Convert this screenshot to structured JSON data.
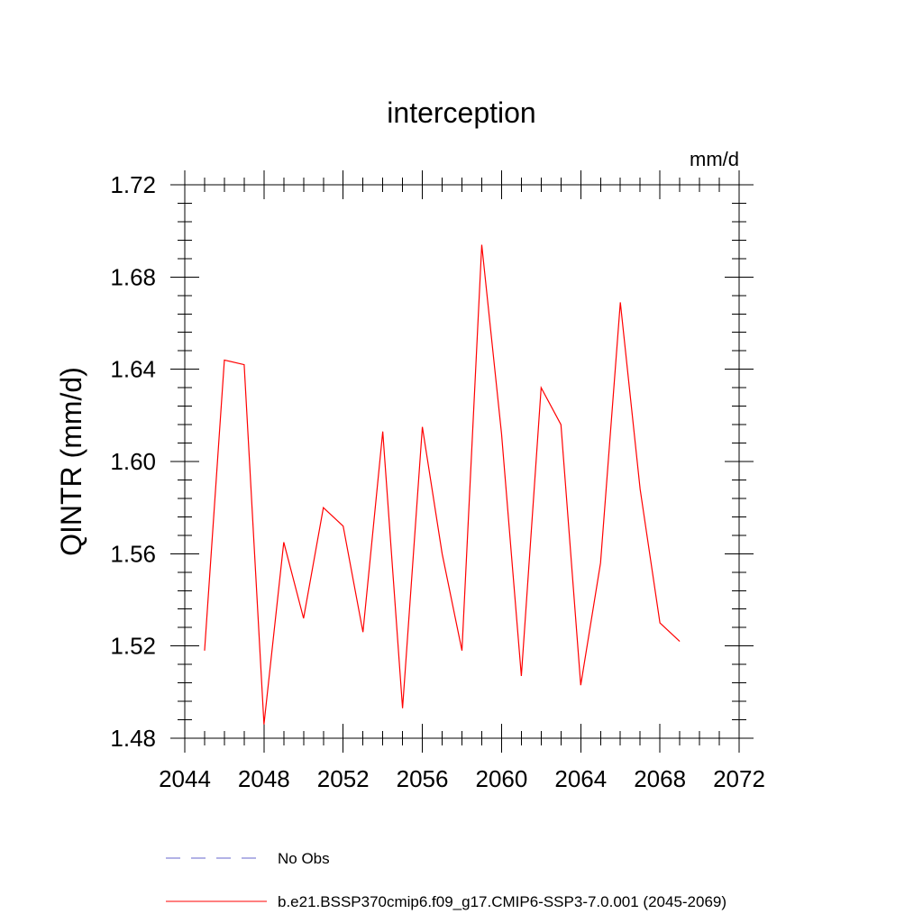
{
  "chart_data": {
    "type": "line",
    "title": "interception",
    "units_label": "mm/d",
    "ylabel": "QINTR  (mm/d)",
    "xlabel": "",
    "xlim": [
      2044,
      2072
    ],
    "ylim": [
      1.48,
      1.72
    ],
    "x_ticks": [
      "2044",
      "2048",
      "2052",
      "2056",
      "2060",
      "2064",
      "2068",
      "2072"
    ],
    "y_ticks": [
      "1.48",
      "1.52",
      "1.56",
      "1.60",
      "1.64",
      "1.68",
      "1.72"
    ],
    "grid": false,
    "legend_position": "bottom",
    "series": [
      {
        "name": "No Obs",
        "color": "#6666cc",
        "dash": "dashed",
        "x": [],
        "values": []
      },
      {
        "name": "b.e21.BSSP370cmip6.f09_g17.CMIP6-SSP3-7.0.001 (2045-2069)",
        "color": "#ff0000",
        "dash": "solid",
        "x": [
          2045,
          2046,
          2047,
          2048,
          2049,
          2050,
          2051,
          2052,
          2053,
          2054,
          2055,
          2056,
          2057,
          2058,
          2059,
          2060,
          2061,
          2062,
          2063,
          2064,
          2065,
          2066,
          2067,
          2068,
          2069
        ],
        "values": [
          1.518,
          1.644,
          1.642,
          1.486,
          1.565,
          1.532,
          1.58,
          1.572,
          1.526,
          1.613,
          1.493,
          1.615,
          1.56,
          1.518,
          1.694,
          1.612,
          1.507,
          1.632,
          1.616,
          1.503,
          1.556,
          1.669,
          1.588,
          1.53,
          1.522
        ]
      }
    ]
  }
}
